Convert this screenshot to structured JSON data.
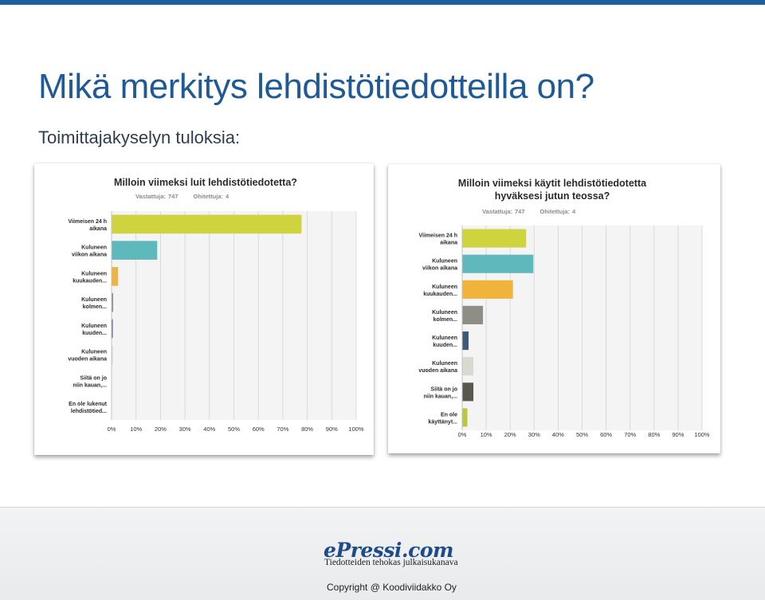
{
  "slide": {
    "title": "Mikä merkitys lehdistötiedotteilla on?",
    "subtitle": "Toimittajakyselyn tuloksia:"
  },
  "footer": {
    "logo": "ePressi.com",
    "tagline": "Tiedotteiden tehokas julkaisukanava",
    "copyright": "Copyright @ Koodiviidakko Oy"
  },
  "colors": {
    "title": "#1f5a96",
    "grid_bg": "#f4f4f4"
  },
  "chart_data": [
    {
      "type": "bar",
      "orientation": "horizontal",
      "title": [
        "Milloin viimeksi luit lehdistötiedotetta?"
      ],
      "stats": [
        {
          "label": "Vastattuja:",
          "value": "747"
        },
        {
          "label": "Ohitettuja:",
          "value": "4"
        }
      ],
      "categories": [
        [
          "Viimeisen 24 h",
          "aikana"
        ],
        [
          "Kuluneen",
          "viikon aikana"
        ],
        [
          "Kuluneen",
          "kuukauden..."
        ],
        [
          "Kuluneen",
          "kolmen..."
        ],
        [
          "Kuluneen",
          "kuuden..."
        ],
        [
          "Kuluneen",
          "vuoden aikana"
        ],
        [
          "Siitä on jo",
          "niin kauan,..."
        ],
        [
          "En ole lukenut",
          "lehdistötied..."
        ]
      ],
      "values": [
        77.5,
        18.5,
        2.5,
        0.5,
        0.3,
        0.3,
        0,
        0
      ],
      "colors": [
        "#cfd33e",
        "#5fb8bc",
        "#f0b43c",
        "#8e8e86",
        "#3d5b78",
        "#d9d9d2",
        "#5a584e",
        "#bac640"
      ],
      "xlim": [
        0,
        100
      ],
      "xticks": [
        "0%",
        "10%",
        "20%",
        "30%",
        "40%",
        "50%",
        "60%",
        "70%",
        "80%",
        "90%",
        "100%"
      ]
    },
    {
      "type": "bar",
      "orientation": "horizontal",
      "title": [
        "Milloin viimeksi käytit lehdistötiedotetta",
        "hyväksesi jutun teossa?"
      ],
      "stats": [
        {
          "label": "Vastattuja:",
          "value": "747"
        },
        {
          "label": "Ohitettuja:",
          "value": "4"
        }
      ],
      "categories": [
        [
          "Viimeisen 24 h",
          "aikana"
        ],
        [
          "Kuluneen",
          "viikon aikana"
        ],
        [
          "Kuluneen",
          "kuukauden..."
        ],
        [
          "Kuluneen",
          "kolmen..."
        ],
        [
          "Kuluneen",
          "kuuden..."
        ],
        [
          "Kuluneen",
          "vuoden aikana"
        ],
        [
          "Siitä on jo",
          "niin kauan,..."
        ],
        [
          "En ole",
          "käyttänyt..."
        ]
      ],
      "values": [
        26.5,
        29.5,
        21,
        8.5,
        2.5,
        4.5,
        4.5,
        2
      ],
      "colors": [
        "#cfd33e",
        "#5fb8bc",
        "#f0b43c",
        "#8e8e86",
        "#3d5b78",
        "#d9d9d2",
        "#5a584e",
        "#bac640"
      ],
      "xlim": [
        0,
        100
      ],
      "xticks": [
        "0%",
        "10%",
        "20%",
        "30%",
        "40%",
        "50%",
        "60%",
        "70%",
        "80%",
        "90%",
        "100%"
      ]
    }
  ]
}
